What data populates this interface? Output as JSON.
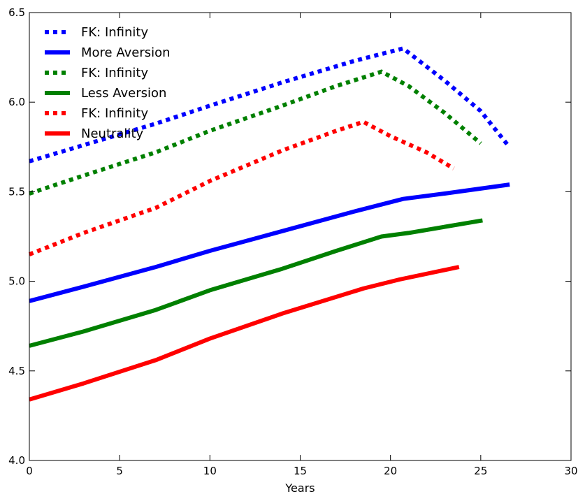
{
  "chart_data": {
    "type": "line",
    "title": "",
    "xlabel": "Years",
    "ylabel": "",
    "xlim": [
      0,
      30
    ],
    "ylim": [
      4.0,
      6.5
    ],
    "xticks": [
      "0",
      "5",
      "10",
      "15",
      "20",
      "25",
      "30"
    ],
    "yticks": [
      "4.0",
      "4.5",
      "5.0",
      "5.5",
      "6.0",
      "6.5"
    ],
    "grid": false,
    "legend_position": "top-left",
    "series": [
      {
        "name": "FK: Infinity",
        "color": "#0000ff",
        "style": "dotted",
        "x": [
          0,
          3,
          7,
          10,
          14,
          18,
          20.7,
          23,
          25,
          26.5
        ],
        "y": [
          5.67,
          5.76,
          5.88,
          5.98,
          6.11,
          6.23,
          6.3,
          6.12,
          5.95,
          5.76
        ]
      },
      {
        "name": "More Aversion",
        "color": "#0000ff",
        "style": "solid",
        "x": [
          0,
          3,
          7,
          10,
          14,
          18,
          20.7,
          23,
          26.6
        ],
        "y": [
          4.89,
          4.97,
          5.08,
          5.17,
          5.28,
          5.39,
          5.46,
          5.49,
          5.54
        ]
      },
      {
        "name": "FK: Infinity",
        "color": "#008000",
        "style": "dotted",
        "x": [
          0,
          3,
          7,
          10,
          14,
          17,
          19.5,
          21,
          23,
          25
        ],
        "y": [
          5.49,
          5.59,
          5.72,
          5.84,
          5.98,
          6.09,
          6.17,
          6.09,
          5.94,
          5.77
        ]
      },
      {
        "name": "Less Aversion",
        "color": "#008000",
        "style": "solid",
        "x": [
          0,
          3,
          7,
          10,
          14,
          17,
          19.5,
          21,
          25.1
        ],
        "y": [
          4.64,
          4.72,
          4.84,
          4.95,
          5.07,
          5.17,
          5.25,
          5.27,
          5.34
        ]
      },
      {
        "name": "FK: Infinity",
        "color": "#ff0000",
        "style": "dotted",
        "x": [
          0,
          3,
          7,
          10,
          14,
          17,
          18.5,
          20,
          22,
          23.5
        ],
        "y": [
          5.15,
          5.27,
          5.41,
          5.56,
          5.73,
          5.84,
          5.89,
          5.81,
          5.72,
          5.63
        ]
      },
      {
        "name": "Neutrality",
        "color": "#ff0000",
        "style": "solid",
        "x": [
          0,
          3,
          7,
          10,
          14,
          18.5,
          20.5,
          23.8
        ],
        "y": [
          4.34,
          4.43,
          4.56,
          4.68,
          4.82,
          4.96,
          5.01,
          5.08
        ]
      }
    ]
  }
}
